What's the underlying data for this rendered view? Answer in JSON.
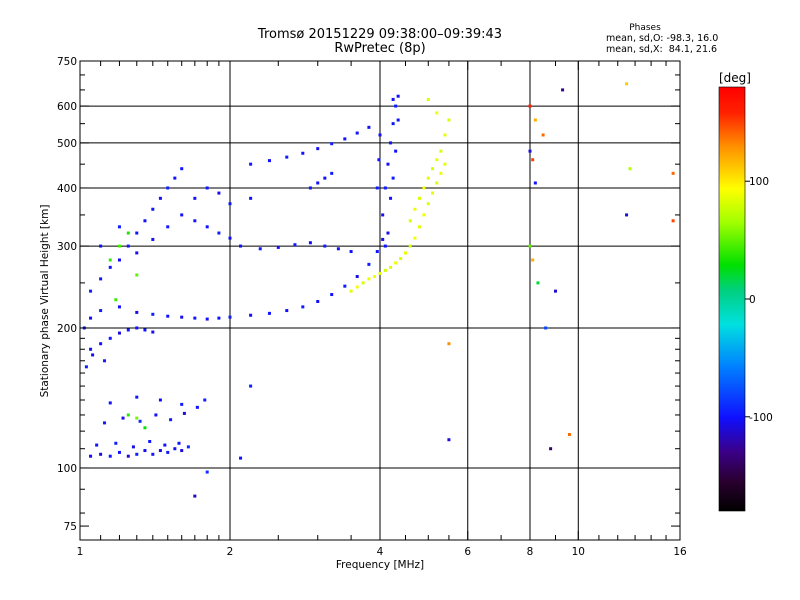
{
  "header": {
    "title_line1": "Tromsø 20151229 09:38:00–09:39:43",
    "title_line2": "RwPretec (8p)",
    "phase_title": "Phases",
    "stat_o": "mean, sd,O: -98.3, 16.0",
    "stat_x": "mean, sd,X:  84.1, 21.6"
  },
  "chart_data": {
    "type": "scatter",
    "xlabel": "Frequency [MHz]",
    "ylabel": "Stationary phase Virtual Height [km]",
    "x_scale": "log",
    "y_scale": "log",
    "xlim": [
      1,
      16
    ],
    "ylim": [
      70,
      750
    ],
    "x_ticks": [
      1,
      2,
      4,
      6,
      8,
      10,
      16
    ],
    "x_tick_labels": [
      "1",
      "2",
      "4",
      "6",
      "8",
      "10",
      "16"
    ],
    "y_ticks": [
      75,
      100,
      200,
      300,
      400,
      500,
      600,
      750
    ],
    "y_tick_labels": [
      "75",
      "100",
      "200",
      "300",
      "400",
      "500",
      "600",
      "750"
    ],
    "x_minor_ticks": [
      1.1,
      1.2,
      1.3,
      1.4,
      1.5,
      1.6,
      1.7,
      1.8,
      1.9,
      2.5,
      3,
      3.5,
      4.5,
      5,
      5.5,
      7,
      9,
      11,
      12,
      13,
      14,
      15
    ],
    "y_minor_ticks": [
      80,
      90,
      110,
      120,
      130,
      140,
      150,
      160,
      170,
      180,
      190,
      250,
      350,
      450,
      550,
      650,
      700
    ],
    "grid_x": [
      2,
      4,
      6,
      8,
      10
    ],
    "grid_y": [
      100,
      200,
      300,
      400,
      500,
      600
    ],
    "grid": true,
    "colorbar": {
      "label": "[deg]",
      "range": [
        -180,
        180
      ],
      "ticks": [
        100,
        0,
        -100
      ],
      "tick_labels": [
        "100",
        "0",
        "-100"
      ],
      "colormap": "rainbow (black-purple-blue-cyan-green-yellow-orange-red)"
    },
    "series": [
      {
        "mode": "O",
        "points": [
          [
            1.05,
            106,
            -105
          ],
          [
            1.1,
            107,
            -110
          ],
          [
            1.15,
            106,
            -98
          ],
          [
            1.2,
            108,
            -100
          ],
          [
            1.25,
            106,
            -112
          ],
          [
            1.3,
            107,
            -95
          ],
          [
            1.35,
            109,
            -104
          ],
          [
            1.4,
            107,
            -99
          ],
          [
            1.45,
            109,
            -108
          ],
          [
            1.5,
            108,
            -96
          ],
          [
            1.55,
            110,
            -103
          ],
          [
            1.6,
            109,
            -110
          ],
          [
            1.65,
            111,
            -92
          ],
          [
            1.08,
            112,
            -101
          ],
          [
            1.18,
            113,
            -95
          ],
          [
            1.28,
            111,
            -107
          ],
          [
            1.38,
            114,
            -98
          ],
          [
            1.48,
            112,
            -102
          ],
          [
            1.58,
            113,
            -100
          ],
          [
            1.12,
            125,
            -98
          ],
          [
            1.22,
            128,
            -105
          ],
          [
            1.32,
            126,
            -90
          ],
          [
            1.42,
            130,
            -100
          ],
          [
            1.52,
            127,
            -96
          ],
          [
            1.62,
            131,
            -108
          ],
          [
            1.72,
            135,
            -100
          ],
          [
            1.78,
            140,
            -95
          ],
          [
            1.15,
            138,
            -102
          ],
          [
            1.3,
            142,
            -99
          ],
          [
            1.45,
            140,
            -104
          ],
          [
            1.6,
            137,
            -97
          ],
          [
            1.03,
            165,
            -95
          ],
          [
            1.06,
            175,
            -105
          ],
          [
            1.1,
            185,
            -100
          ],
          [
            1.15,
            190,
            -98
          ],
          [
            1.2,
            195,
            -110
          ],
          [
            1.25,
            198,
            -96
          ],
          [
            1.3,
            200,
            -102
          ],
          [
            1.35,
            198,
            -99
          ],
          [
            1.4,
            196,
            -104
          ],
          [
            1.05,
            180,
            -101
          ],
          [
            1.12,
            170,
            -97
          ],
          [
            1.02,
            200,
            -99
          ],
          [
            1.05,
            210,
            -103
          ],
          [
            1.1,
            218,
            -96
          ],
          [
            1.2,
            222,
            -101
          ],
          [
            1.3,
            216,
            -107
          ],
          [
            1.4,
            214,
            -95
          ],
          [
            1.5,
            212,
            -100
          ],
          [
            1.6,
            211,
            -104
          ],
          [
            1.7,
            210,
            -98
          ],
          [
            1.8,
            209,
            -102
          ],
          [
            1.9,
            210,
            -100
          ],
          [
            2.0,
            211,
            -96
          ],
          [
            2.2,
            213,
            -103
          ],
          [
            2.4,
            215,
            -99
          ],
          [
            2.6,
            218,
            -101
          ],
          [
            2.8,
            222,
            -97
          ],
          [
            3.0,
            228,
            -102
          ],
          [
            3.2,
            236,
            -100
          ],
          [
            3.4,
            246,
            -98
          ],
          [
            3.6,
            258,
            -104
          ],
          [
            3.8,
            274,
            -96
          ],
          [
            3.95,
            292,
            -100
          ],
          [
            4.05,
            310,
            -103
          ],
          [
            1.05,
            240,
            -96
          ],
          [
            1.1,
            255,
            -101
          ],
          [
            1.15,
            270,
            -99
          ],
          [
            1.2,
            280,
            -104
          ],
          [
            1.25,
            300,
            -97
          ],
          [
            1.3,
            320,
            -100
          ],
          [
            1.35,
            340,
            -102
          ],
          [
            1.4,
            360,
            -98
          ],
          [
            1.45,
            380,
            -103
          ],
          [
            1.5,
            400,
            -95
          ],
          [
            1.55,
            420,
            -100
          ],
          [
            1.6,
            440,
            -99
          ],
          [
            1.1,
            300,
            -101
          ],
          [
            1.2,
            330,
            -97
          ],
          [
            1.3,
            290,
            -105
          ],
          [
            1.4,
            310,
            -100
          ],
          [
            1.5,
            330,
            -98
          ],
          [
            1.6,
            350,
            -103
          ],
          [
            1.7,
            340,
            -99
          ],
          [
            1.8,
            330,
            -101
          ],
          [
            1.9,
            320,
            -96
          ],
          [
            2.0,
            312,
            -102
          ],
          [
            1.7,
            380,
            -100
          ],
          [
            1.8,
            400,
            -98
          ],
          [
            1.9,
            390,
            -104
          ],
          [
            2.0,
            370,
            -97
          ],
          [
            2.1,
            300,
            -100
          ],
          [
            2.3,
            296,
            -98
          ],
          [
            2.5,
            298,
            -103
          ],
          [
            2.7,
            302,
            -99
          ],
          [
            2.9,
            305,
            -101
          ],
          [
            3.1,
            300,
            -97
          ],
          [
            3.3,
            296,
            -102
          ],
          [
            3.5,
            292,
            -100
          ],
          [
            2.2,
            450,
            -99
          ],
          [
            2.4,
            458,
            -102
          ],
          [
            2.6,
            466,
            -97
          ],
          [
            2.8,
            475,
            -100
          ],
          [
            3.0,
            486,
            -104
          ],
          [
            3.2,
            498,
            -96
          ],
          [
            3.4,
            510,
            -101
          ],
          [
            3.6,
            525,
            -99
          ],
          [
            3.8,
            540,
            -103
          ],
          [
            2.9,
            400,
            -98
          ],
          [
            3.0,
            410,
            -100
          ],
          [
            3.1,
            420,
            -103
          ],
          [
            3.2,
            430,
            -97
          ],
          [
            4.05,
            350,
            -101
          ],
          [
            4.1,
            400,
            -97
          ],
          [
            4.15,
            450,
            -103
          ],
          [
            4.2,
            500,
            -99
          ],
          [
            4.25,
            550,
            -100
          ],
          [
            4.3,
            600,
            -96
          ],
          [
            4.35,
            630,
            -102
          ],
          [
            4.1,
            300,
            -98
          ],
          [
            4.15,
            320,
            -104
          ],
          [
            4.2,
            380,
            -100
          ],
          [
            4.25,
            420,
            -97
          ],
          [
            4.3,
            480,
            -101
          ],
          [
            4.35,
            560,
            -99
          ],
          [
            4.25,
            620,
            -103
          ],
          [
            3.95,
            400,
            -98
          ],
          [
            3.98,
            460,
            -102
          ],
          [
            4.0,
            520,
            -100
          ]
        ]
      },
      {
        "mode": "X",
        "points": [
          [
            3.5,
            240,
            85
          ],
          [
            3.6,
            245,
            90
          ],
          [
            3.7,
            250,
            82
          ],
          [
            3.8,
            255,
            88
          ],
          [
            3.9,
            258,
            92
          ],
          [
            4.0,
            262,
            86
          ],
          [
            4.1,
            266,
            80
          ],
          [
            4.2,
            270,
            84
          ],
          [
            4.3,
            276,
            89
          ],
          [
            4.4,
            282,
            83
          ],
          [
            4.5,
            290,
            87
          ],
          [
            4.6,
            300,
            81
          ],
          [
            4.7,
            312,
            90
          ],
          [
            4.8,
            330,
            85
          ],
          [
            4.9,
            350,
            88
          ],
          [
            5.0,
            370,
            84
          ],
          [
            5.1,
            390,
            86
          ],
          [
            5.2,
            410,
            82
          ],
          [
            5.3,
            430,
            89
          ],
          [
            5.4,
            450,
            85
          ],
          [
            4.6,
            340,
            84
          ],
          [
            4.7,
            360,
            88
          ],
          [
            4.8,
            380,
            82
          ],
          [
            4.9,
            400,
            90
          ],
          [
            5.0,
            420,
            86
          ],
          [
            5.1,
            440,
            80
          ],
          [
            5.2,
            460,
            87
          ],
          [
            5.3,
            480,
            83
          ],
          [
            5.4,
            520,
            86
          ],
          [
            5.5,
            560,
            84
          ],
          [
            5.2,
            580,
            88
          ],
          [
            5.0,
            620,
            82
          ],
          [
            1.15,
            280,
            40
          ],
          [
            1.2,
            300,
            45
          ],
          [
            1.25,
            320,
            35
          ],
          [
            1.3,
            260,
            50
          ],
          [
            1.18,
            230,
            42
          ],
          [
            1.25,
            130,
            38
          ],
          [
            1.3,
            128,
            55
          ],
          [
            1.35,
            122,
            30
          ],
          [
            8.0,
            600,
            160
          ],
          [
            8.2,
            560,
            120
          ],
          [
            8.5,
            520,
            140
          ],
          [
            8.0,
            480,
            -110
          ],
          [
            8.1,
            460,
            150
          ],
          [
            8.2,
            410,
            -100
          ],
          [
            8.0,
            300,
            50
          ],
          [
            8.1,
            280,
            120
          ],
          [
            8.3,
            250,
            20
          ],
          [
            8.6,
            200,
            -80
          ],
          [
            8.8,
            110,
            -140
          ],
          [
            9.0,
            240,
            -110
          ],
          [
            9.3,
            650,
            -130
          ],
          [
            9.6,
            118,
            140
          ],
          [
            12.5,
            670,
            110
          ],
          [
            12.7,
            440,
            70
          ],
          [
            12.5,
            350,
            -110
          ],
          [
            15.5,
            340,
            150
          ],
          [
            15.5,
            430,
            140
          ],
          [
            2.2,
            380,
            -100
          ],
          [
            2.2,
            150,
            -95
          ],
          [
            1.7,
            87,
            -120
          ],
          [
            1.8,
            98,
            -90
          ],
          [
            2.1,
            105,
            -100
          ],
          [
            5.5,
            115,
            -110
          ],
          [
            5.5,
            185,
            130
          ]
        ]
      }
    ]
  }
}
